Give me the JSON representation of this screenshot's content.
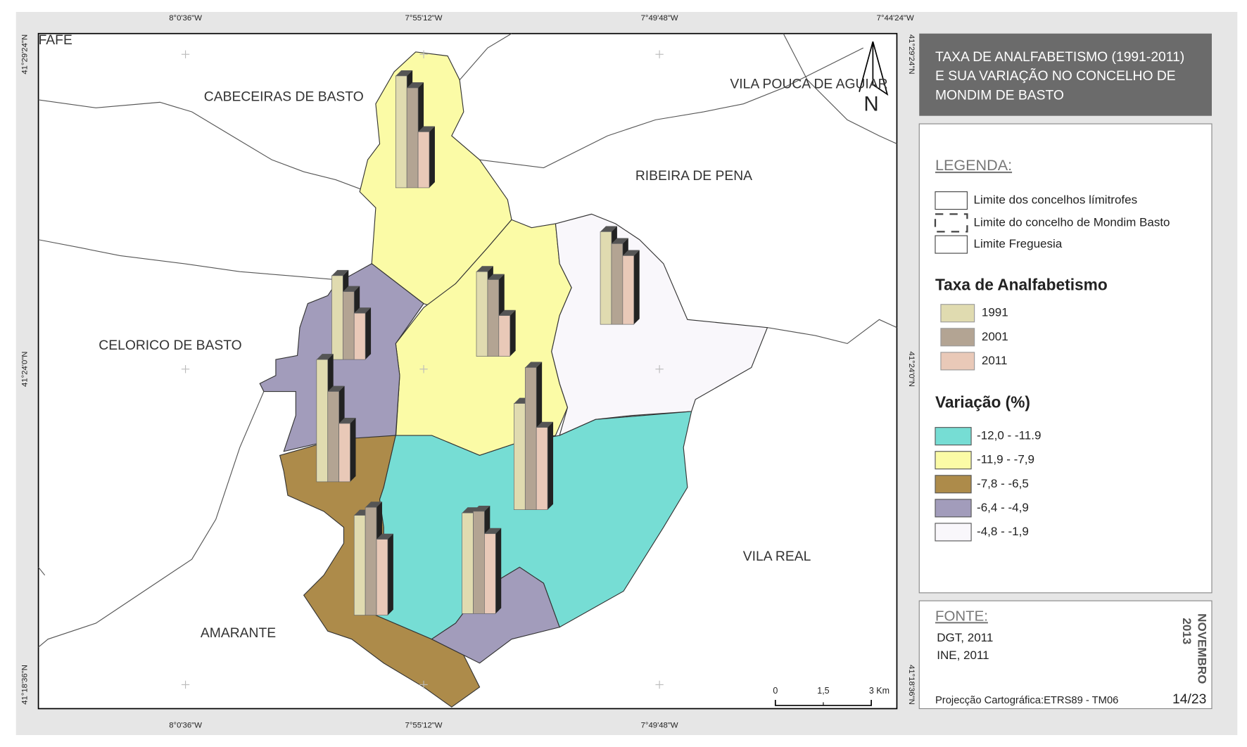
{
  "title_lines": [
    "TAXA DE ANALFABETISMO (1991-2011)",
    "E SUA VARIAÇÃO NO CONCELHO DE",
    "MONDIM DE BASTO"
  ],
  "north": "N",
  "coordinates": {
    "top": [
      "8°0'36\"W",
      "7°55'12\"W",
      "7°49'48\"W",
      "7°44'24\"W"
    ],
    "bottom": [
      "8°0'36\"W",
      "7°55'12\"W",
      "7°49'48\"W"
    ],
    "left": [
      "41°29'24\"N",
      "41°24'0\"N",
      "41°18'36\"N"
    ],
    "right": [
      "41°29'24\"N",
      "41°24'0\"N",
      "41°18'36\"N"
    ]
  },
  "places": [
    "FAFE",
    "CABECEIRAS DE BASTO",
    "VILA POUCA DE AGUIAR",
    "RIBEIRA DE PENA",
    "CELORICO DE BASTO",
    "VILA REAL",
    "AMARANTE"
  ],
  "legend": {
    "heading": "LEGENDA:",
    "boundaries": [
      "Limite dos concelhos límitrofes",
      "Limite do concelho de Mondim Basto",
      "Limite Freguesia"
    ],
    "rate_title": "Taxa de Analfabetismo",
    "rate_items": [
      {
        "label": "1991",
        "color": "#e0dbb0"
      },
      {
        "label": "2001",
        "color": "#b3a493"
      },
      {
        "label": "2011",
        "color": "#e9c9b8"
      }
    ],
    "variation_title": "Variação (%)",
    "variation_items": [
      {
        "label": "-12,0 - -11.9",
        "color": "#76ddd4"
      },
      {
        "label": "-11,9 - -7,9",
        "color": "#fbfba6"
      },
      {
        "label": "-7,8 - -6,5",
        "color": "#ad8b4a"
      },
      {
        "label": "-6,4 - -4,9",
        "color": "#a29cbb"
      },
      {
        "label": "-4,8 - -1,9",
        "color": "#f9f7fb"
      }
    ]
  },
  "scale": [
    "0",
    "1,5",
    "3 Km"
  ],
  "source": {
    "heading": "FONTE:",
    "lines": [
      "DGT, 2011",
      "INE, 2011"
    ]
  },
  "projection": "Projecção Cartográfica:ETRS89 - TM06",
  "date_lines": [
    "NOVEMBRO",
    "2013"
  ],
  "page": "14/23"
}
